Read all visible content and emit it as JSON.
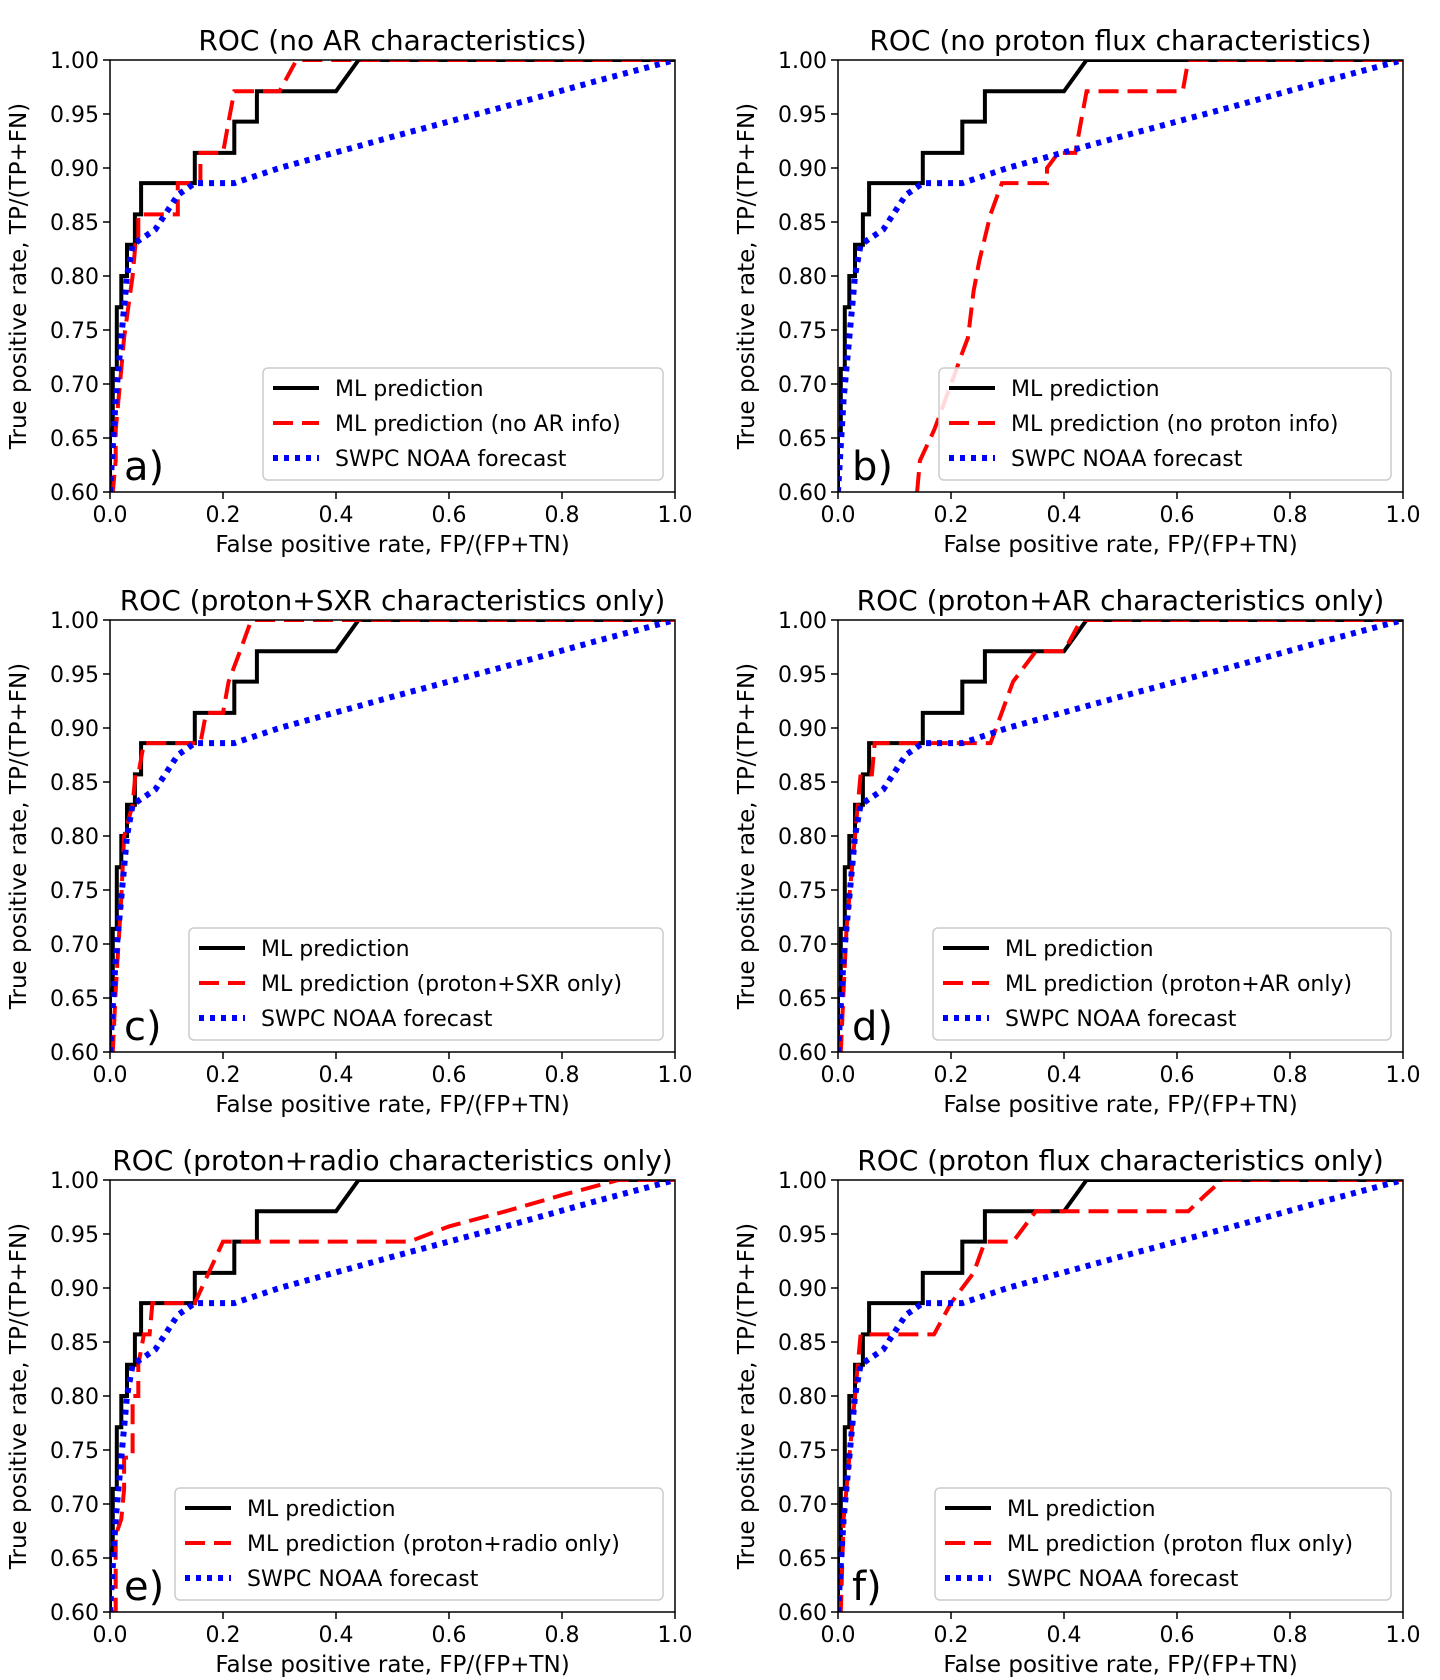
{
  "figure_title": "ROC curve comparison of ML predictions and SWPC NOAA forecast",
  "colors": {
    "ml": "#000000",
    "variant": "#ff0000",
    "swpc": "#0000ff"
  },
  "chart_data": [
    {
      "type": "line",
      "panel_label": "a)",
      "title": "ROC (no AR characteristics)",
      "xlabel": "False positive rate, FP/(FP+TN)",
      "ylabel": "True positive rate, TP/(TP+FN)",
      "xlim": [
        0.0,
        1.0
      ],
      "ylim": [
        0.6,
        1.0
      ],
      "xticks": [
        "0.0",
        "0.2",
        "0.4",
        "0.6",
        "0.8",
        "1.0"
      ],
      "yticks": [
        "0.60",
        "0.65",
        "0.70",
        "0.75",
        "0.80",
        "0.85",
        "0.90",
        "0.95",
        "1.00"
      ],
      "legend_position": "lower-right",
      "series": [
        {
          "name": "ML prediction",
          "style": "solid",
          "x": [
            0,
            0,
            0.005,
            0.005,
            0.012,
            0.012,
            0.02,
            0.02,
            0.03,
            0.03,
            0.044,
            0.044,
            0.055,
            0.055,
            0.15,
            0.15,
            0.22,
            0.22,
            0.26,
            0.26,
            0.4,
            0.44,
            1.0
          ],
          "y": [
            0.6,
            0.657,
            0.657,
            0.714,
            0.714,
            0.771,
            0.771,
            0.8,
            0.8,
            0.829,
            0.829,
            0.857,
            0.857,
            0.886,
            0.886,
            0.914,
            0.914,
            0.943,
            0.943,
            0.971,
            0.971,
            1.0,
            1.0
          ]
        },
        {
          "name": "ML prediction (no AR info)",
          "style": "dashed",
          "x": [
            0,
            0.005,
            0.01,
            0.01,
            0.02,
            0.025,
            0.04,
            0.045,
            0.05,
            0.05,
            0.12,
            0.12,
            0.16,
            0.16,
            0.2,
            0.21,
            0.22,
            0.22,
            0.3,
            0.33,
            0.34,
            1.0
          ],
          "y": [
            0.6,
            0.6,
            0.629,
            0.657,
            0.714,
            0.743,
            0.8,
            0.829,
            0.829,
            0.857,
            0.857,
            0.886,
            0.886,
            0.914,
            0.914,
            0.943,
            0.971,
            0.971,
            0.971,
            1.0,
            1.0,
            1.0
          ]
        },
        {
          "name": "SWPC NOAA forecast",
          "style": "dotted",
          "x": [
            0,
            0.01,
            0.02,
            0.03,
            0.04,
            0.08,
            0.12,
            0.15,
            0.22,
            0.3,
            0.5,
            0.7,
            0.85,
            1.0
          ],
          "y": [
            0.6,
            0.686,
            0.743,
            0.8,
            0.829,
            0.843,
            0.875,
            0.886,
            0.886,
            0.9,
            0.929,
            0.957,
            0.979,
            1.0
          ]
        }
      ]
    },
    {
      "type": "line",
      "panel_label": "b)",
      "title": "ROC (no proton flux characteristics)",
      "xlabel": "False positive rate, FP/(FP+TN)",
      "ylabel": "True positive rate, TP/(TP+FN)",
      "xlim": [
        0.0,
        1.0
      ],
      "ylim": [
        0.6,
        1.0
      ],
      "xticks": [
        "0.0",
        "0.2",
        "0.4",
        "0.6",
        "0.8",
        "1.0"
      ],
      "yticks": [
        "0.60",
        "0.65",
        "0.70",
        "0.75",
        "0.80",
        "0.85",
        "0.90",
        "0.95",
        "1.00"
      ],
      "legend_position": "lower-right",
      "series": [
        {
          "name": "ML prediction",
          "style": "solid",
          "x": [
            0,
            0,
            0.005,
            0.005,
            0.012,
            0.012,
            0.02,
            0.02,
            0.03,
            0.03,
            0.044,
            0.044,
            0.055,
            0.055,
            0.15,
            0.15,
            0.22,
            0.22,
            0.26,
            0.26,
            0.4,
            0.44,
            1.0
          ],
          "y": [
            0.6,
            0.657,
            0.657,
            0.714,
            0.714,
            0.771,
            0.771,
            0.8,
            0.8,
            0.829,
            0.829,
            0.857,
            0.857,
            0.886,
            0.886,
            0.914,
            0.914,
            0.943,
            0.943,
            0.971,
            0.971,
            1.0,
            1.0
          ]
        },
        {
          "name": "ML prediction (no proton info)",
          "style": "dashed",
          "x": [
            0.14,
            0.145,
            0.17,
            0.18,
            0.2,
            0.21,
            0.22,
            0.23,
            0.24,
            0.25,
            0.27,
            0.29,
            0.37,
            0.37,
            0.39,
            0.42,
            0.43,
            0.44,
            0.46,
            0.61,
            0.62,
            0.63,
            1.0
          ],
          "y": [
            0.6,
            0.629,
            0.657,
            0.671,
            0.7,
            0.714,
            0.729,
            0.743,
            0.786,
            0.814,
            0.857,
            0.886,
            0.886,
            0.9,
            0.914,
            0.914,
            0.943,
            0.971,
            0.971,
            0.971,
            1.0,
            1.0,
            1.0
          ]
        },
        {
          "name": "SWPC NOAA forecast",
          "style": "dotted",
          "x": [
            0,
            0.01,
            0.02,
            0.03,
            0.04,
            0.08,
            0.12,
            0.15,
            0.22,
            0.3,
            0.5,
            0.7,
            0.85,
            1.0
          ],
          "y": [
            0.6,
            0.686,
            0.743,
            0.8,
            0.829,
            0.843,
            0.875,
            0.886,
            0.886,
            0.9,
            0.929,
            0.957,
            0.979,
            1.0
          ]
        }
      ]
    },
    {
      "type": "line",
      "panel_label": "c)",
      "title": "ROC (proton+SXR characteristics only)",
      "xlabel": "False positive rate, FP/(FP+TN)",
      "ylabel": "True positive rate, TP/(TP+FN)",
      "xlim": [
        0.0,
        1.0
      ],
      "ylim": [
        0.6,
        1.0
      ],
      "xticks": [
        "0.0",
        "0.2",
        "0.4",
        "0.6",
        "0.8",
        "1.0"
      ],
      "yticks": [
        "0.60",
        "0.65",
        "0.70",
        "0.75",
        "0.80",
        "0.85",
        "0.90",
        "0.95",
        "1.00"
      ],
      "legend_position": "lower-right",
      "series": [
        {
          "name": "ML prediction",
          "style": "solid",
          "x": [
            0,
            0,
            0.005,
            0.005,
            0.012,
            0.012,
            0.02,
            0.02,
            0.03,
            0.03,
            0.044,
            0.044,
            0.055,
            0.055,
            0.15,
            0.15,
            0.22,
            0.22,
            0.26,
            0.26,
            0.4,
            0.44,
            1.0
          ],
          "y": [
            0.6,
            0.657,
            0.657,
            0.714,
            0.714,
            0.771,
            0.771,
            0.8,
            0.8,
            0.829,
            0.829,
            0.857,
            0.857,
            0.886,
            0.886,
            0.914,
            0.914,
            0.943,
            0.943,
            0.971,
            0.971,
            1.0,
            1.0
          ]
        },
        {
          "name": "ML prediction (proton+SXR only)",
          "style": "dashed",
          "x": [
            0,
            0.005,
            0.01,
            0.015,
            0.02,
            0.025,
            0.04,
            0.045,
            0.05,
            0.06,
            0.16,
            0.17,
            0.2,
            0.21,
            0.23,
            0.25,
            0.27,
            1.0
          ],
          "y": [
            0.6,
            0.6,
            0.657,
            0.7,
            0.743,
            0.8,
            0.829,
            0.857,
            0.857,
            0.886,
            0.886,
            0.914,
            0.914,
            0.943,
            0.971,
            1.0,
            1.0,
            1.0
          ]
        },
        {
          "name": "SWPC NOAA forecast",
          "style": "dotted",
          "x": [
            0,
            0.01,
            0.02,
            0.03,
            0.04,
            0.08,
            0.12,
            0.15,
            0.22,
            0.3,
            0.5,
            0.7,
            0.85,
            1.0
          ],
          "y": [
            0.6,
            0.686,
            0.743,
            0.8,
            0.829,
            0.843,
            0.875,
            0.886,
            0.886,
            0.9,
            0.929,
            0.957,
            0.979,
            1.0
          ]
        }
      ]
    },
    {
      "type": "line",
      "panel_label": "d)",
      "title": "ROC (proton+AR characteristics only)",
      "xlabel": "False positive rate, FP/(FP+TN)",
      "ylabel": "True positive rate, TP/(TP+FN)",
      "xlim": [
        0.0,
        1.0
      ],
      "ylim": [
        0.6,
        1.0
      ],
      "xticks": [
        "0.0",
        "0.2",
        "0.4",
        "0.6",
        "0.8",
        "1.0"
      ],
      "yticks": [
        "0.60",
        "0.65",
        "0.70",
        "0.75",
        "0.80",
        "0.85",
        "0.90",
        "0.95",
        "1.00"
      ],
      "legend_position": "lower-right",
      "series": [
        {
          "name": "ML prediction",
          "style": "solid",
          "x": [
            0,
            0,
            0.005,
            0.005,
            0.012,
            0.012,
            0.02,
            0.02,
            0.03,
            0.03,
            0.044,
            0.044,
            0.055,
            0.055,
            0.15,
            0.15,
            0.22,
            0.22,
            0.26,
            0.26,
            0.4,
            0.44,
            1.0
          ],
          "y": [
            0.6,
            0.657,
            0.657,
            0.714,
            0.714,
            0.771,
            0.771,
            0.8,
            0.8,
            0.829,
            0.829,
            0.857,
            0.857,
            0.886,
            0.886,
            0.914,
            0.914,
            0.943,
            0.943,
            0.971,
            0.971,
            1.0,
            1.0
          ]
        },
        {
          "name": "ML prediction (proton+AR only)",
          "style": "dashed",
          "x": [
            0,
            0.005,
            0.01,
            0.015,
            0.02,
            0.03,
            0.035,
            0.04,
            0.06,
            0.065,
            0.27,
            0.28,
            0.3,
            0.31,
            0.35,
            0.36,
            0.4,
            0.43,
            1.0
          ],
          "y": [
            0.6,
            0.6,
            0.657,
            0.714,
            0.743,
            0.8,
            0.829,
            0.857,
            0.857,
            0.886,
            0.886,
            0.9,
            0.929,
            0.943,
            0.971,
            0.971,
            0.971,
            1.0,
            1.0
          ]
        },
        {
          "name": "SWPC NOAA forecast",
          "style": "dotted",
          "x": [
            0,
            0.01,
            0.02,
            0.03,
            0.04,
            0.08,
            0.12,
            0.15,
            0.22,
            0.3,
            0.5,
            0.7,
            0.85,
            1.0
          ],
          "y": [
            0.6,
            0.686,
            0.743,
            0.8,
            0.829,
            0.843,
            0.875,
            0.886,
            0.886,
            0.9,
            0.929,
            0.957,
            0.979,
            1.0
          ]
        }
      ]
    },
    {
      "type": "line",
      "panel_label": "e)",
      "title": "ROC (proton+radio characteristics only)",
      "xlabel": "False positive rate, FP/(FP+TN)",
      "ylabel": "True positive rate, TP/(TP+FN)",
      "xlim": [
        0.0,
        1.0
      ],
      "ylim": [
        0.6,
        1.0
      ],
      "xticks": [
        "0.0",
        "0.2",
        "0.4",
        "0.6",
        "0.8",
        "1.0"
      ],
      "yticks": [
        "0.60",
        "0.65",
        "0.70",
        "0.75",
        "0.80",
        "0.85",
        "0.90",
        "0.95",
        "1.00"
      ],
      "legend_position": "lower-right",
      "series": [
        {
          "name": "ML prediction",
          "style": "solid",
          "x": [
            0,
            0,
            0.005,
            0.005,
            0.012,
            0.012,
            0.02,
            0.02,
            0.03,
            0.03,
            0.044,
            0.044,
            0.055,
            0.055,
            0.15,
            0.15,
            0.22,
            0.22,
            0.26,
            0.26,
            0.4,
            0.44,
            1.0
          ],
          "y": [
            0.6,
            0.657,
            0.657,
            0.714,
            0.714,
            0.771,
            0.771,
            0.8,
            0.8,
            0.829,
            0.829,
            0.857,
            0.857,
            0.886,
            0.886,
            0.914,
            0.914,
            0.943,
            0.943,
            0.971,
            0.971,
            1.0,
            1.0
          ]
        },
        {
          "name": "ML prediction (proton+radio only)",
          "style": "dashed",
          "x": [
            0,
            0.01,
            0.01,
            0.02,
            0.025,
            0.025,
            0.04,
            0.04,
            0.05,
            0.05,
            0.06,
            0.07,
            0.075,
            0.15,
            0.2,
            0.22,
            0.53,
            0.6,
            0.7,
            0.8,
            0.9,
            0.92,
            1.0
          ],
          "y": [
            0.6,
            0.6,
            0.671,
            0.686,
            0.714,
            0.743,
            0.743,
            0.8,
            0.8,
            0.829,
            0.857,
            0.857,
            0.886,
            0.886,
            0.943,
            0.943,
            0.943,
            0.957,
            0.971,
            0.986,
            1.0,
            1.0,
            1.0
          ]
        },
        {
          "name": "SWPC NOAA forecast",
          "style": "dotted",
          "x": [
            0,
            0.01,
            0.02,
            0.03,
            0.04,
            0.08,
            0.12,
            0.15,
            0.22,
            0.3,
            0.5,
            0.7,
            0.85,
            1.0
          ],
          "y": [
            0.6,
            0.686,
            0.743,
            0.8,
            0.829,
            0.843,
            0.875,
            0.886,
            0.886,
            0.9,
            0.929,
            0.957,
            0.979,
            1.0
          ]
        }
      ]
    },
    {
      "type": "line",
      "panel_label": "f)",
      "title": "ROC (proton flux characteristics only)",
      "xlabel": "False positive rate, FP/(FP+TN)",
      "ylabel": "True positive rate, TP/(TP+FN)",
      "xlim": [
        0.0,
        1.0
      ],
      "ylim": [
        0.6,
        1.0
      ],
      "xticks": [
        "0.0",
        "0.2",
        "0.4",
        "0.6",
        "0.8",
        "1.0"
      ],
      "yticks": [
        "0.60",
        "0.65",
        "0.70",
        "0.75",
        "0.80",
        "0.85",
        "0.90",
        "0.95",
        "1.00"
      ],
      "legend_position": "lower-right",
      "series": [
        {
          "name": "ML prediction",
          "style": "solid",
          "x": [
            0,
            0,
            0.005,
            0.005,
            0.012,
            0.012,
            0.02,
            0.02,
            0.03,
            0.03,
            0.044,
            0.044,
            0.055,
            0.055,
            0.15,
            0.15,
            0.22,
            0.22,
            0.26,
            0.26,
            0.4,
            0.44,
            1.0
          ],
          "y": [
            0.6,
            0.657,
            0.657,
            0.714,
            0.714,
            0.771,
            0.771,
            0.8,
            0.8,
            0.829,
            0.829,
            0.857,
            0.857,
            0.886,
            0.886,
            0.914,
            0.914,
            0.943,
            0.943,
            0.971,
            0.971,
            1.0,
            1.0
          ]
        },
        {
          "name": "ML prediction (proton flux only)",
          "style": "dashed",
          "x": [
            0,
            0.005,
            0.01,
            0.015,
            0.02,
            0.03,
            0.035,
            0.04,
            0.17,
            0.2,
            0.24,
            0.26,
            0.31,
            0.35,
            0.37,
            0.4,
            0.62,
            0.65,
            0.68,
            0.7,
            1.0
          ],
          "y": [
            0.6,
            0.6,
            0.686,
            0.714,
            0.743,
            0.8,
            0.829,
            0.857,
            0.857,
            0.886,
            0.914,
            0.943,
            0.943,
            0.971,
            0.971,
            0.971,
            0.971,
            0.986,
            1.0,
            1.0,
            1.0
          ]
        },
        {
          "name": "SWPC NOAA forecast",
          "style": "dotted",
          "x": [
            0,
            0.01,
            0.02,
            0.03,
            0.04,
            0.08,
            0.12,
            0.15,
            0.22,
            0.3,
            0.5,
            0.7,
            0.85,
            1.0
          ],
          "y": [
            0.6,
            0.686,
            0.743,
            0.8,
            0.829,
            0.843,
            0.875,
            0.886,
            0.886,
            0.9,
            0.929,
            0.957,
            0.979,
            1.0
          ]
        }
      ]
    }
  ]
}
